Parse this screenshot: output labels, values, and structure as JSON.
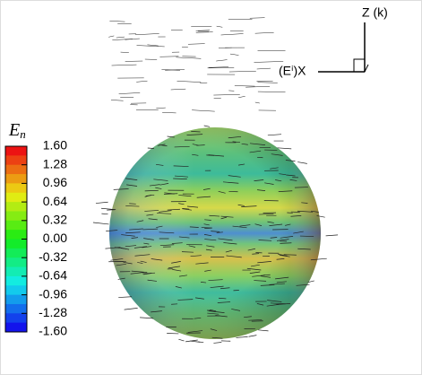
{
  "colorbar": {
    "title": "E",
    "title_subscript": "n",
    "ticks": [
      {
        "value": 1.6,
        "label": "1.60"
      },
      {
        "value": 1.28,
        "label": "1.28"
      },
      {
        "value": 0.96,
        "label": "0.96"
      },
      {
        "value": 0.64,
        "label": "0.64"
      },
      {
        "value": 0.32,
        "label": "0.32"
      },
      {
        "value": 0,
        "label": "0.00"
      },
      {
        "value": -0.32,
        "label": "-0.32"
      },
      {
        "value": -0.64,
        "label": "-0.64"
      },
      {
        "value": -0.96,
        "label": "-0.96"
      },
      {
        "value": -1.28,
        "label": "-1.28"
      },
      {
        "value": -1.6,
        "label": "-1.60"
      }
    ]
  },
  "axes": {
    "z_label": "Z (k)",
    "x_label": "(Eⁱ)X"
  }
}
